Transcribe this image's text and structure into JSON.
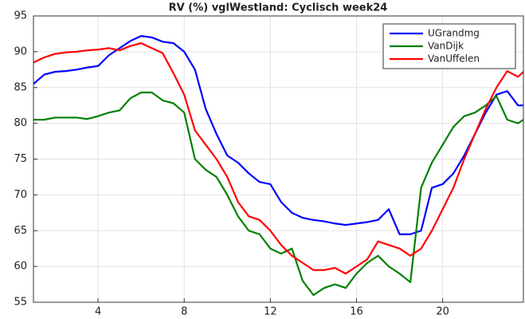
{
  "chart_data": {
    "type": "line",
    "title": "RV (%) vglWestland: Cyclisch week24",
    "x": [
      1,
      1.5,
      2,
      2.5,
      3,
      3.5,
      4,
      4.5,
      5,
      5.5,
      6,
      6.5,
      7,
      7.5,
      8,
      8.5,
      9,
      9.5,
      10,
      10.5,
      11,
      11.5,
      12,
      12.5,
      13,
      13.5,
      14,
      14.5,
      15,
      15.5,
      16,
      16.5,
      17,
      17.5,
      18,
      18.5,
      19,
      19.5,
      20,
      20.5,
      21,
      21.5,
      22,
      22.5,
      23,
      23.5,
      23.75
    ],
    "series": [
      {
        "name": "UGrandmg",
        "color": "#0000ff",
        "values": [
          85.5,
          86.8,
          87.2,
          87.3,
          87.5,
          87.8,
          88.0,
          89.5,
          90.5,
          91.5,
          92.2,
          92.0,
          91.4,
          91.2,
          90.0,
          87.5,
          82,
          78.5,
          75.5,
          74.5,
          73,
          71.8,
          71.5,
          69,
          67.5,
          66.8,
          66.5,
          66.3,
          66,
          65.8,
          66,
          66.2,
          66.5,
          68,
          64.5,
          64.5,
          65,
          71,
          71.5,
          73,
          75.5,
          78.5,
          81.5,
          84,
          84.5,
          82.5,
          82.5
        ]
      },
      {
        "name": "VanDijk",
        "color": "#008000",
        "values": [
          80.5,
          80.5,
          80.8,
          80.8,
          80.8,
          80.6,
          81,
          81.5,
          81.8,
          83.5,
          84.3,
          84.3,
          83.2,
          82.8,
          81.5,
          75,
          73.5,
          72.5,
          70,
          67,
          65,
          64.5,
          62.5,
          61.8,
          62.5,
          58,
          56,
          57,
          57.5,
          57,
          59,
          60.5,
          61.5,
          60,
          59,
          57.8,
          71,
          74.5,
          77,
          79.5,
          81,
          81.5,
          82.5,
          83.8,
          80.5,
          80,
          80.5
        ]
      },
      {
        "name": "VanUffelen",
        "color": "#ff0000",
        "values": [
          88.5,
          89.2,
          89.7,
          89.9,
          90,
          90.2,
          90.3,
          90.5,
          90.2,
          90.8,
          91.2,
          90.5,
          89.8,
          87,
          84,
          79,
          77,
          75,
          72.5,
          69,
          67,
          66.5,
          65,
          63,
          61.5,
          60.5,
          59.5,
          59.5,
          59.8,
          59,
          60,
          61,
          63.5,
          63,
          62.5,
          61.5,
          62.5,
          65,
          68,
          71,
          75,
          78.5,
          82,
          85,
          87.3,
          86.5,
          87.2
        ]
      }
    ],
    "xlim": [
      1,
      23.75
    ],
    "ylim": [
      55,
      95
    ],
    "xticks": [
      4,
      8,
      12,
      16,
      20
    ],
    "yticks": [
      55,
      60,
      65,
      70,
      75,
      80,
      85,
      90,
      95
    ],
    "grid": true,
    "legend": "upper right"
  }
}
